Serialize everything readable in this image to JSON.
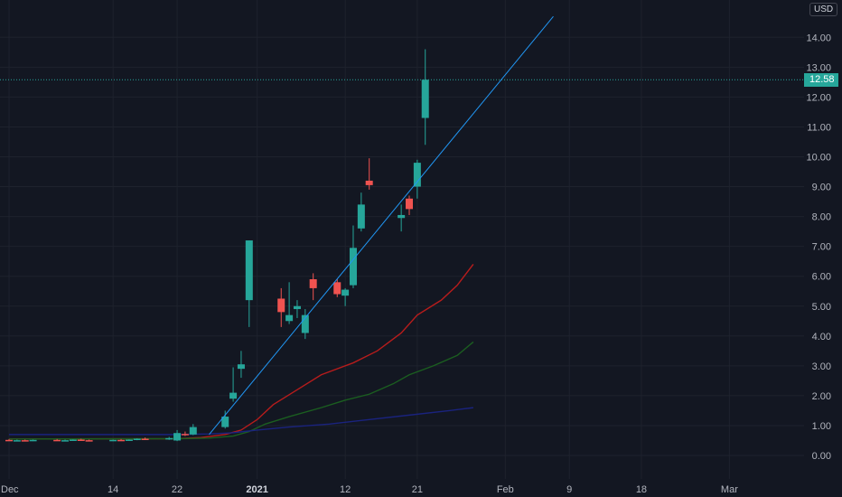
{
  "currency": "USD",
  "last_price_label": "12.58",
  "colors": {
    "background": "#131722",
    "up": "#26a69a",
    "down": "#ef5350",
    "trendline": "#2196f3",
    "ma_red": "#b71c1c",
    "ma_green": "#1b5e20",
    "ma_blue": "#1a237e"
  },
  "chart_data": {
    "type": "candlestick",
    "y_ticks": [
      "0.00",
      "1.00",
      "2.00",
      "3.00",
      "4.00",
      "5.00",
      "6.00",
      "7.00",
      "8.00",
      "9.00",
      "10.00",
      "11.00",
      "12.00",
      "13.00",
      "14.00"
    ],
    "x_ticks": [
      {
        "label": "Dec",
        "day": 0,
        "bold": false
      },
      {
        "label": "14",
        "day": 13,
        "bold": false
      },
      {
        "label": "22",
        "day": 21,
        "bold": false
      },
      {
        "label": "2021",
        "day": 31,
        "bold": true
      },
      {
        "label": "12",
        "day": 42,
        "bold": false
      },
      {
        "label": "21",
        "day": 51,
        "bold": false
      },
      {
        "label": "Feb",
        "day": 62,
        "bold": false
      },
      {
        "label": "9",
        "day": 70,
        "bold": false
      },
      {
        "label": "18",
        "day": 79,
        "bold": false
      },
      {
        "label": "Mar",
        "day": 90,
        "bold": false
      }
    ],
    "y_range": [
      -0.2,
      15.0
    ],
    "last_price": 12.58,
    "candles": [
      {
        "date": "2020-12-01",
        "open": 0.52,
        "high": 0.55,
        "low": 0.49,
        "close": 0.5
      },
      {
        "date": "2020-12-02",
        "open": 0.5,
        "high": 0.53,
        "low": 0.48,
        "close": 0.51
      },
      {
        "date": "2020-12-03",
        "open": 0.51,
        "high": 0.53,
        "low": 0.49,
        "close": 0.5
      },
      {
        "date": "2020-12-04",
        "open": 0.5,
        "high": 0.53,
        "low": 0.48,
        "close": 0.52
      },
      {
        "date": "2020-12-07",
        "open": 0.52,
        "high": 0.55,
        "low": 0.5,
        "close": 0.5
      },
      {
        "date": "2020-12-08",
        "open": 0.5,
        "high": 0.53,
        "low": 0.48,
        "close": 0.51
      },
      {
        "date": "2020-12-09",
        "open": 0.51,
        "high": 0.54,
        "low": 0.49,
        "close": 0.53
      },
      {
        "date": "2020-12-10",
        "open": 0.53,
        "high": 0.56,
        "low": 0.5,
        "close": 0.51
      },
      {
        "date": "2020-12-11",
        "open": 0.51,
        "high": 0.53,
        "low": 0.49,
        "close": 0.5
      },
      {
        "date": "2020-12-14",
        "open": 0.5,
        "high": 0.53,
        "low": 0.48,
        "close": 0.52
      },
      {
        "date": "2020-12-15",
        "open": 0.52,
        "high": 0.55,
        "low": 0.5,
        "close": 0.51
      },
      {
        "date": "2020-12-16",
        "open": 0.51,
        "high": 0.54,
        "low": 0.49,
        "close": 0.53
      },
      {
        "date": "2020-12-17",
        "open": 0.53,
        "high": 0.57,
        "low": 0.51,
        "close": 0.56
      },
      {
        "date": "2020-12-18",
        "open": 0.56,
        "high": 0.6,
        "low": 0.53,
        "close": 0.55
      },
      {
        "date": "2020-12-21",
        "open": 0.55,
        "high": 0.62,
        "low": 0.52,
        "close": 0.58
      },
      {
        "date": "2020-12-22",
        "open": 0.5,
        "high": 0.85,
        "low": 0.48,
        "close": 0.75
      },
      {
        "date": "2020-12-23",
        "open": 0.72,
        "high": 0.8,
        "low": 0.65,
        "close": 0.7
      },
      {
        "date": "2020-12-24",
        "open": 0.7,
        "high": 1.05,
        "low": 0.68,
        "close": 0.95
      },
      {
        "date": "2020-12-28",
        "open": 0.95,
        "high": 1.5,
        "low": 0.9,
        "close": 1.3
      },
      {
        "date": "2020-12-29",
        "open": 1.9,
        "high": 2.95,
        "low": 1.8,
        "close": 2.1
      },
      {
        "date": "2020-12-30",
        "open": 2.9,
        "high": 3.5,
        "low": 2.6,
        "close": 3.05
      },
      {
        "date": "2020-12-31",
        "open": 5.2,
        "high": 7.2,
        "low": 4.3,
        "close": 7.2
      },
      {
        "date": "2021-01-04",
        "open": 5.25,
        "high": 5.6,
        "low": 4.3,
        "close": 4.8
      },
      {
        "date": "2021-01-05",
        "open": 4.5,
        "high": 5.8,
        "low": 4.4,
        "close": 4.7
      },
      {
        "date": "2021-01-06",
        "open": 4.9,
        "high": 5.2,
        "low": 4.6,
        "close": 5.0
      },
      {
        "date": "2021-01-07",
        "open": 4.1,
        "high": 4.9,
        "low": 3.9,
        "close": 4.7
      },
      {
        "date": "2021-01-08",
        "open": 5.9,
        "high": 6.1,
        "low": 5.2,
        "close": 5.6
      },
      {
        "date": "2021-01-11",
        "open": 5.8,
        "high": 5.9,
        "low": 5.3,
        "close": 5.4
      },
      {
        "date": "2021-01-12",
        "open": 5.35,
        "high": 5.6,
        "low": 5.0,
        "close": 5.55
      },
      {
        "date": "2021-01-13",
        "open": 5.7,
        "high": 7.7,
        "low": 5.6,
        "close": 6.95
      },
      {
        "date": "2021-01-14",
        "open": 7.6,
        "high": 8.8,
        "low": 7.5,
        "close": 8.4
      },
      {
        "date": "2021-01-15",
        "open": 9.2,
        "high": 9.95,
        "low": 8.9,
        "close": 9.05
      },
      {
        "date": "2021-01-19",
        "open": 7.95,
        "high": 8.4,
        "low": 7.5,
        "close": 8.05
      },
      {
        "date": "2021-01-20",
        "open": 8.6,
        "high": 8.7,
        "low": 8.05,
        "close": 8.25
      },
      {
        "date": "2021-01-21",
        "open": 9.0,
        "high": 9.9,
        "low": 8.6,
        "close": 9.8
      },
      {
        "date": "2021-01-22",
        "open": 11.3,
        "high": 13.6,
        "low": 10.4,
        "close": 12.58
      }
    ],
    "moving_averages": [
      {
        "color_key": "ma_red",
        "points": [
          [
            0,
            0.55
          ],
          [
            21,
            0.56
          ],
          [
            24,
            0.6
          ],
          [
            27,
            0.7
          ],
          [
            29,
            0.85
          ],
          [
            31,
            1.2
          ],
          [
            33,
            1.7
          ],
          [
            36,
            2.2
          ],
          [
            39,
            2.7
          ],
          [
            43,
            3.1
          ],
          [
            46,
            3.5
          ],
          [
            49,
            4.1
          ],
          [
            51,
            4.7
          ],
          [
            54,
            5.2
          ],
          [
            56,
            5.7
          ],
          [
            58,
            6.4
          ]
        ]
      },
      {
        "color_key": "ma_green",
        "points": [
          [
            0,
            0.55
          ],
          [
            21,
            0.56
          ],
          [
            25,
            0.58
          ],
          [
            28,
            0.65
          ],
          [
            30,
            0.8
          ],
          [
            32,
            1.05
          ],
          [
            35,
            1.3
          ],
          [
            39,
            1.6
          ],
          [
            42,
            1.85
          ],
          [
            45,
            2.05
          ],
          [
            48,
            2.4
          ],
          [
            50,
            2.7
          ],
          [
            53,
            3.0
          ],
          [
            56,
            3.35
          ],
          [
            58,
            3.8
          ]
        ]
      },
      {
        "color_key": "ma_blue",
        "points": [
          [
            0,
            0.7
          ],
          [
            21,
            0.7
          ],
          [
            25,
            0.72
          ],
          [
            28,
            0.76
          ],
          [
            31,
            0.85
          ],
          [
            35,
            0.95
          ],
          [
            40,
            1.05
          ],
          [
            45,
            1.2
          ],
          [
            50,
            1.35
          ],
          [
            55,
            1.5
          ],
          [
            58,
            1.6
          ]
        ]
      }
    ],
    "trendline": {
      "start": [
        25,
        0.7
      ],
      "end": [
        68,
        14.7
      ]
    }
  }
}
